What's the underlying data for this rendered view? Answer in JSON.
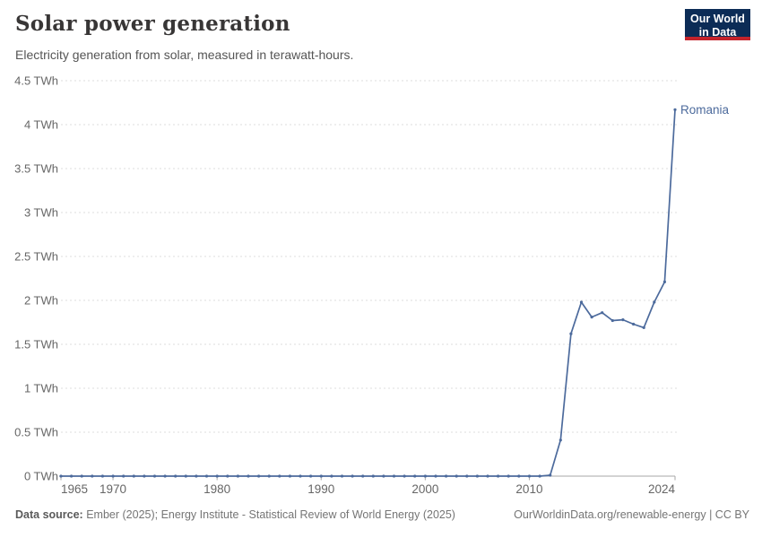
{
  "header": {
    "title": "Solar power generation",
    "subtitle": "Electricity generation from solar, measured in terawatt-hours."
  },
  "logo": {
    "line1": "Our World",
    "line2": "in Data",
    "bg_color": "#0c2c56",
    "bar_color": "#c4232b"
  },
  "chart_data": {
    "type": "line",
    "title": "Solar power generation",
    "unit": "TWh",
    "xlim": [
      1965,
      2024
    ],
    "ylim": [
      0,
      4.5
    ],
    "grid": "horizontal-dashed",
    "yticks": [
      0,
      0.5,
      1,
      1.5,
      2,
      2.5,
      3,
      3.5,
      4,
      4.5
    ],
    "ytick_labels": [
      "0 TWh",
      "0.5 TWh",
      "1 TWh",
      "1.5 TWh",
      "2 TWh",
      "2.5 TWh",
      "3 TWh",
      "3.5 TWh",
      "4 TWh",
      "4.5 TWh"
    ],
    "xticks": [
      1965,
      1970,
      1980,
      1990,
      2000,
      2010,
      2024
    ],
    "xtick_labels": [
      "1965",
      "1970",
      "1980",
      "1990",
      "2000",
      "2010",
      "2024"
    ],
    "series": [
      {
        "name": "Romania",
        "color": "#4c6a9c",
        "x": [
          1965,
          1966,
          1967,
          1968,
          1969,
          1970,
          1971,
          1972,
          1973,
          1974,
          1975,
          1976,
          1977,
          1978,
          1979,
          1980,
          1981,
          1982,
          1983,
          1984,
          1985,
          1986,
          1987,
          1988,
          1989,
          1990,
          1991,
          1992,
          1993,
          1994,
          1995,
          1996,
          1997,
          1998,
          1999,
          2000,
          2001,
          2002,
          2003,
          2004,
          2005,
          2006,
          2007,
          2008,
          2009,
          2010,
          2011,
          2012,
          2013,
          2014,
          2015,
          2016,
          2017,
          2018,
          2019,
          2020,
          2021,
          2022,
          2023,
          2024
        ],
        "values": [
          0,
          0,
          0,
          0,
          0,
          0,
          0,
          0,
          0,
          0,
          0,
          0,
          0,
          0,
          0,
          0,
          0,
          0,
          0,
          0,
          0,
          0,
          0,
          0,
          0,
          0,
          0,
          0,
          0,
          0,
          0,
          0,
          0,
          0,
          0,
          0,
          0,
          0,
          0,
          0,
          0,
          0,
          0,
          0,
          0,
          0,
          0,
          0.01,
          0.41,
          1.62,
          1.98,
          1.81,
          1.86,
          1.77,
          1.78,
          1.73,
          1.69,
          1.98,
          2.21,
          4.17
        ]
      }
    ],
    "colors": {
      "gridline": "#dedede",
      "axis": "#a7a7a7",
      "tick_label": "#666666"
    }
  },
  "footer": {
    "source_label": "Data source:",
    "source_text": " Ember (2025); Energy Institute - Statistical Review of World Energy (2025)",
    "link_text": "OurWorldinData.org/renewable-energy | CC BY"
  }
}
